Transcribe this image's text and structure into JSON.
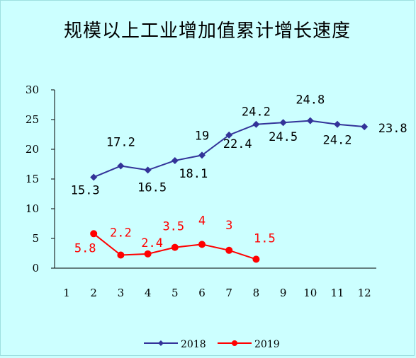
{
  "chart_data": {
    "type": "line",
    "title": "规模以上工业增加值累计增长速度",
    "xlabel": "",
    "ylabel": "",
    "ylim": [
      0,
      30
    ],
    "yticks": [
      "0",
      "5",
      "10",
      "15",
      "20",
      "25",
      "30"
    ],
    "categories": [
      "1",
      "2",
      "3",
      "4",
      "5",
      "6",
      "7",
      "8",
      "9",
      "10",
      "11",
      "12"
    ],
    "grid": false,
    "legend_position": "bottom",
    "series": [
      {
        "name": "2018",
        "color": "#333399",
        "marker": "diamond",
        "x": [
          2,
          3,
          4,
          5,
          6,
          7,
          8,
          9,
          10,
          11,
          12
        ],
        "values": [
          15.3,
          17.2,
          16.5,
          18.1,
          19,
          22.4,
          24.2,
          24.5,
          24.8,
          24.2,
          23.8
        ],
        "labels": [
          "15.3",
          "17.2",
          "16.5",
          "18.1",
          "19",
          "22.4",
          "24.2",
          "24.5",
          "24.8",
          "24.2",
          "23.8"
        ]
      },
      {
        "name": "2019",
        "color": "#ff0000",
        "marker": "circle",
        "x": [
          2,
          3,
          4,
          5,
          6,
          7,
          8
        ],
        "values": [
          5.8,
          2.2,
          2.4,
          3.5,
          4,
          3,
          1.5
        ],
        "labels": [
          "5.8",
          "2.2",
          "2.4",
          "3.5",
          "4",
          "3",
          "1.5"
        ]
      }
    ]
  }
}
